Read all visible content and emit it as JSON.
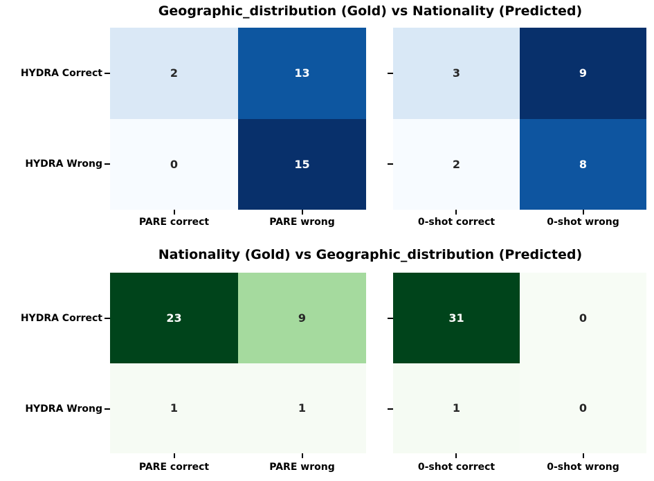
{
  "titles": {
    "top": "Geographic_distribution (Gold) vs Nationality (Predicted)",
    "bottom": "Nationality (Gold) vs Geographic_distribution (Predicted)"
  },
  "colors": {
    "background": "#ffffff",
    "label_text": "#000000",
    "annotation_dark": "#262626",
    "annotation_light": "#ffffff"
  },
  "chart_data": [
    {
      "type": "heatmap",
      "title": "Geographic_distribution (Gold) vs Nationality (Predicted)",
      "position": "top-left",
      "colormap": "Blues",
      "x_labels": [
        "PARE correct",
        "PARE wrong"
      ],
      "y_labels": [
        "HYDRA Correct",
        "HYDRA Wrong"
      ],
      "values": [
        [
          2,
          13
        ],
        [
          0,
          15
        ]
      ],
      "cell_colors": [
        [
          "#dae8f6",
          "#0d56a0"
        ],
        [
          "#f7fbff",
          "#08306b"
        ]
      ],
      "text_colors": [
        [
          "#262626",
          "#ffffff"
        ],
        [
          "#262626",
          "#ffffff"
        ]
      ]
    },
    {
      "type": "heatmap",
      "title": "Geographic_distribution (Gold) vs Nationality (Predicted)",
      "position": "top-right",
      "colormap": "Blues",
      "x_labels": [
        "0-shot correct",
        "0-shot wrong"
      ],
      "y_labels": [
        "",
        ""
      ],
      "values": [
        [
          3,
          9
        ],
        [
          2,
          8
        ]
      ],
      "cell_colors": [
        [
          "#d9e8f6",
          "#08306b"
        ],
        [
          "#f7fbff",
          "#0e55a0"
        ]
      ],
      "text_colors": [
        [
          "#262626",
          "#ffffff"
        ],
        [
          "#262626",
          "#ffffff"
        ]
      ]
    },
    {
      "type": "heatmap",
      "title": "Nationality (Gold) vs Geographic_distribution (Predicted)",
      "position": "bottom-left",
      "colormap": "Greens",
      "x_labels": [
        "PARE correct",
        "PARE wrong"
      ],
      "y_labels": [
        "HYDRA Correct",
        "HYDRA Wrong"
      ],
      "values": [
        [
          23,
          9
        ],
        [
          1,
          1
        ]
      ],
      "cell_colors": [
        [
          "#00441b",
          "#a5da9e"
        ],
        [
          "#f6fbf4",
          "#f6fbf4"
        ]
      ],
      "text_colors": [
        [
          "#ffffff",
          "#262626"
        ],
        [
          "#262626",
          "#262626"
        ]
      ]
    },
    {
      "type": "heatmap",
      "title": "Nationality (Gold) vs Geographic_distribution (Predicted)",
      "position": "bottom-right",
      "colormap": "Greens",
      "x_labels": [
        "0-shot correct",
        "0-shot wrong"
      ],
      "y_labels": [
        "",
        ""
      ],
      "values": [
        [
          31,
          0
        ],
        [
          1,
          0
        ]
      ],
      "cell_colors": [
        [
          "#00441b",
          "#f7fcf5"
        ],
        [
          "#f5fbf3",
          "#f7fcf5"
        ]
      ],
      "text_colors": [
        [
          "#ffffff",
          "#262626"
        ],
        [
          "#262626",
          "#262626"
        ]
      ]
    }
  ]
}
